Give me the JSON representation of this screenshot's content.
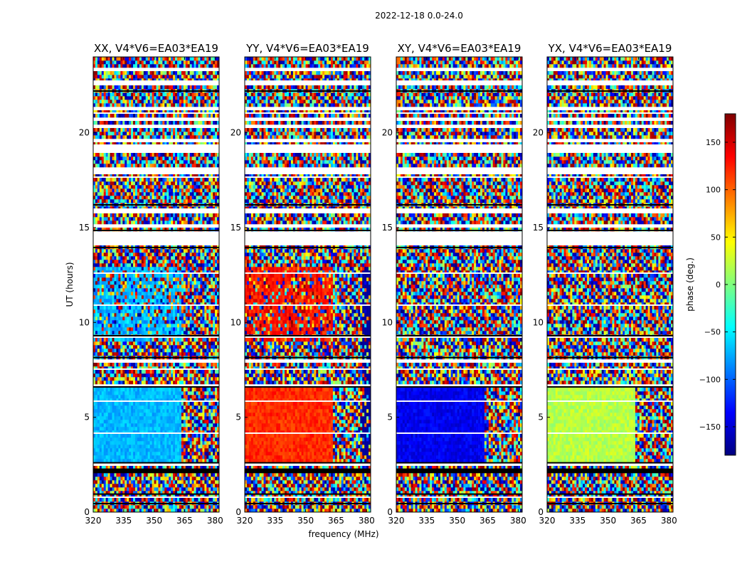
{
  "figure": {
    "suptitle": "2022-12-18 0.0-24.0",
    "ylabel": "UT (hours)",
    "xlabel": "frequency (MHz)",
    "colorbar_label": "phase (deg.)",
    "colormap": "jet",
    "colormap_stops": [
      "#00007f",
      "#0000ff",
      "#007fff",
      "#00ffff",
      "#7fff7f",
      "#ffff00",
      "#ff7f00",
      "#ff0000",
      "#7f0000"
    ],
    "flagged_color": "#ffffff"
  },
  "chart_data": {
    "type": "heatmap",
    "panels": [
      {
        "title": "XX, V4*V6=EA03*EA19",
        "polarization": "XX"
      },
      {
        "title": "YY, V4*V6=EA03*EA19",
        "polarization": "YY"
      },
      {
        "title": "XY, V4*V6=EA03*EA19",
        "polarization": "XY"
      },
      {
        "title": "YX, V4*V6=EA03*EA19",
        "polarization": "YX"
      }
    ],
    "x_axis": {
      "label": "frequency (MHz)",
      "range": [
        320,
        382
      ],
      "ticks": [
        320,
        335,
        350,
        365,
        380
      ]
    },
    "y_axis": {
      "label": "UT (hours)",
      "range": [
        0,
        24
      ],
      "ticks": [
        0,
        5,
        10,
        15,
        20
      ]
    },
    "colorbar": {
      "label": "phase (deg.)",
      "range": [
        -180,
        180
      ],
      "ticks": [
        -150,
        -100,
        -50,
        0,
        50,
        100,
        150
      ]
    },
    "coherent_regions_phase_deg": {
      "XX": {
        "ut_2.5_to_6.5_freq_320_to_363": -70,
        "ut_9_to_13_freq_320_to_363": -70
      },
      "YY": {
        "ut_2.5_to_6.5_freq_320_to_363": 120,
        "ut_9_to_13_freq_320_to_363": 130,
        "freq_378_to_382": -170
      },
      "XY": {
        "ut_2.5_to_6.5_freq_320_to_363": -140
      },
      "YX": {
        "ut_2.5_to_6.5_freq_320_to_363": 20
      }
    },
    "flagged_ut_hours": [
      [
        2.05,
        2.3
      ],
      [
        2.35,
        2.55
      ],
      [
        6.6,
        6.75
      ],
      [
        7.3,
        7.4
      ],
      [
        7.9,
        8.1
      ],
      [
        14.0,
        14.8
      ],
      [
        15.05,
        15.1
      ],
      [
        15.75,
        15.85
      ],
      [
        17.9,
        18.1
      ],
      [
        18.5,
        18.6
      ],
      [
        18.85,
        19.3
      ],
      [
        19.55,
        19.65
      ],
      [
        20.25,
        20.35
      ],
      [
        20.65,
        20.75
      ],
      [
        21.15,
        21.3
      ],
      [
        22.55,
        22.65
      ],
      [
        23.25,
        23.35
      ]
    ]
  }
}
